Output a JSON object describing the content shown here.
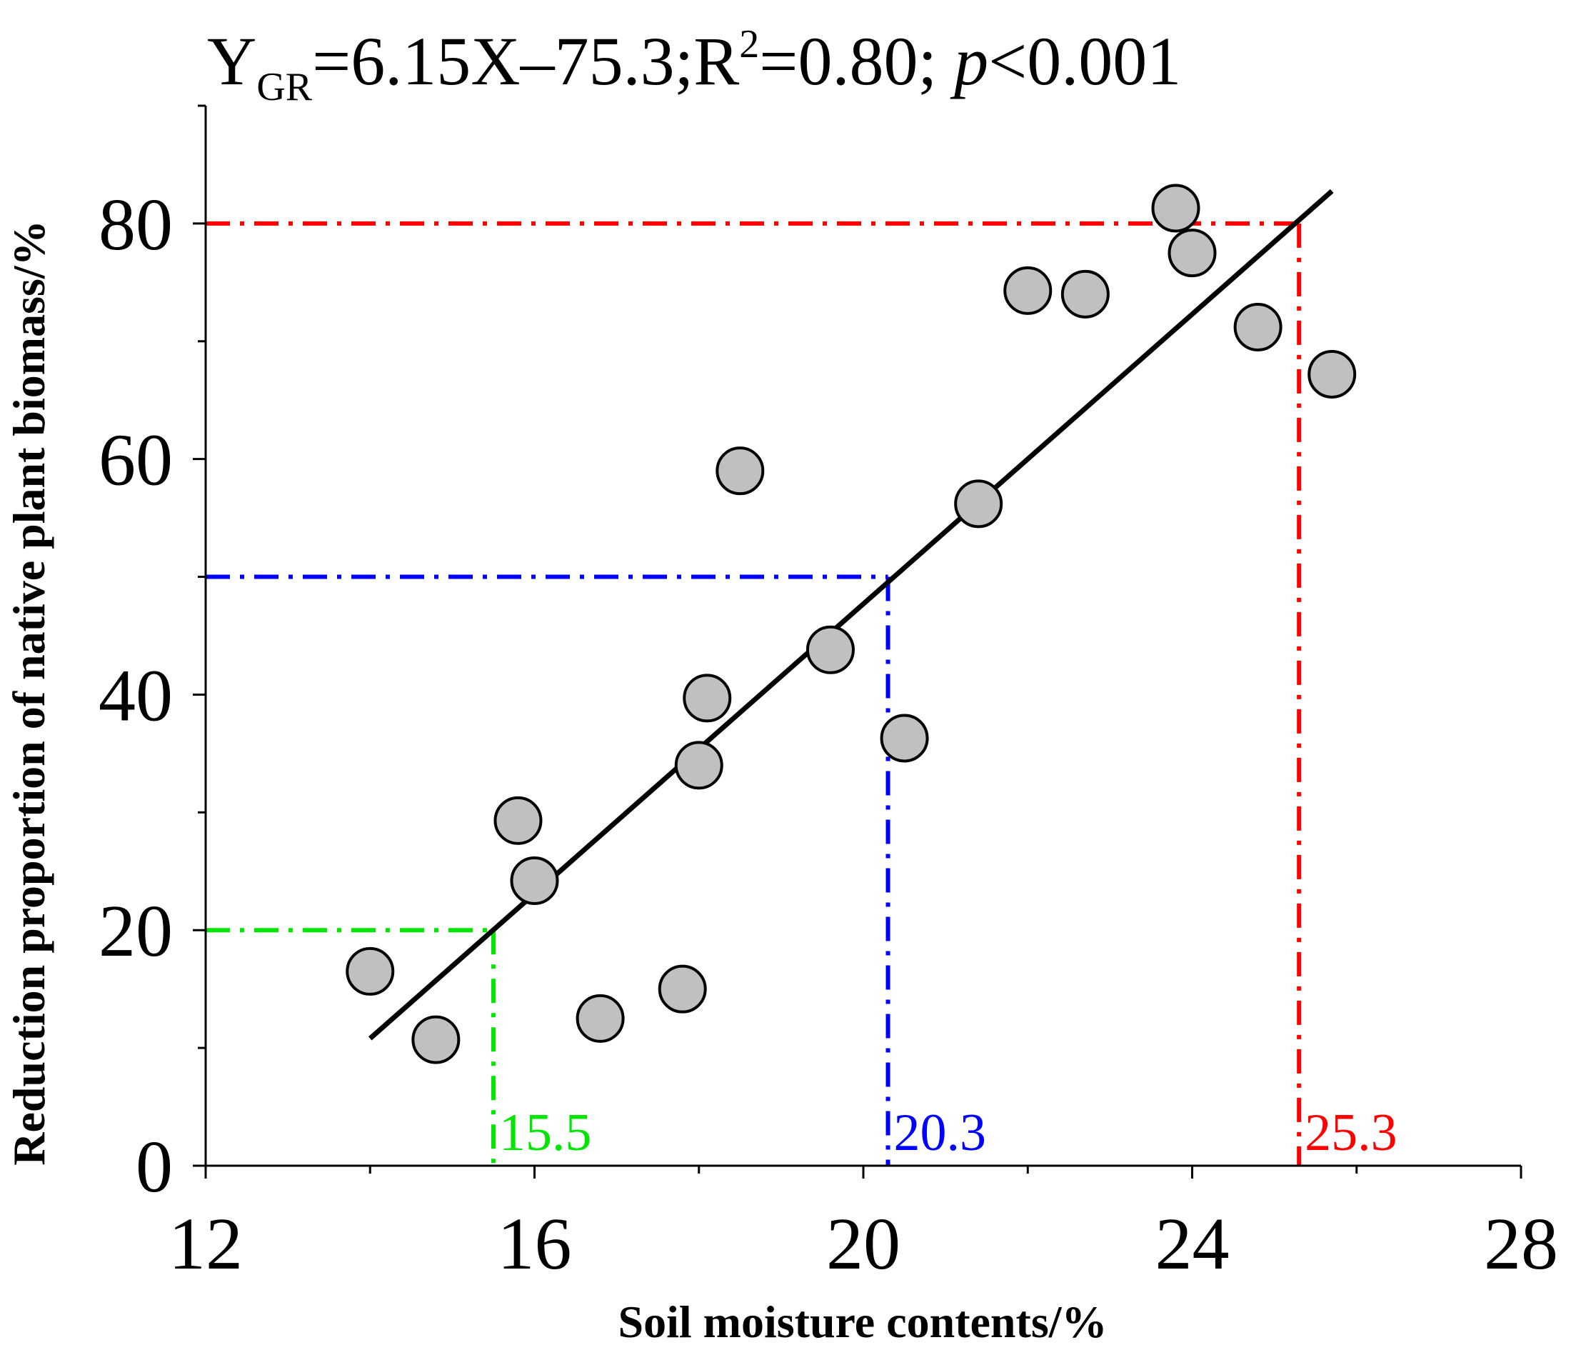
{
  "chart_data": {
    "type": "scatter",
    "equation": {
      "y": "Y",
      "y_sub": "GR",
      "fit": "=6.15X–75.3;R",
      "r_sup": "2",
      "r_val": "=0.80; ",
      "p_sym": "p",
      "p_val": "<0.001"
    },
    "xlabel": "Soil moisture contents/%",
    "ylabel": "Reduction proportion of native plant biomass/%",
    "xlim": [
      12,
      28
    ],
    "ylim": [
      0,
      90
    ],
    "xticks": [
      12,
      16,
      20,
      24,
      28
    ],
    "yticks": [
      0,
      20,
      40,
      60,
      80
    ],
    "x_minor_step": 2,
    "y_minor_step": 10,
    "points": [
      {
        "x": 14.0,
        "y": 16.5
      },
      {
        "x": 14.8,
        "y": 10.7
      },
      {
        "x": 15.8,
        "y": 29.3
      },
      {
        "x": 16.0,
        "y": 24.2
      },
      {
        "x": 16.8,
        "y": 12.5
      },
      {
        "x": 17.8,
        "y": 15.0
      },
      {
        "x": 18.0,
        "y": 34.0
      },
      {
        "x": 18.1,
        "y": 39.7
      },
      {
        "x": 18.5,
        "y": 59.0
      },
      {
        "x": 19.6,
        "y": 43.8
      },
      {
        "x": 20.5,
        "y": 36.3
      },
      {
        "x": 21.4,
        "y": 56.2
      },
      {
        "x": 22.0,
        "y": 74.3
      },
      {
        "x": 22.7,
        "y": 74.0
      },
      {
        "x": 23.8,
        "y": 81.3
      },
      {
        "x": 24.0,
        "y": 77.5
      },
      {
        "x": 24.8,
        "y": 71.2
      },
      {
        "x": 25.7,
        "y": 67.2
      }
    ],
    "fit_line": {
      "slope": 6.15,
      "intercept": -75.3,
      "x_range": [
        14.0,
        25.7
      ],
      "color": "#000000"
    },
    "reference_lines": [
      {
        "x": 15.5,
        "y": 20,
        "label": "15.5",
        "color": "#00e600"
      },
      {
        "x": 20.3,
        "y": 50,
        "label": "20.3",
        "color": "#0000ff"
      },
      {
        "x": 25.3,
        "y": 80,
        "label": "25.3",
        "color": "#ff0000"
      }
    ],
    "marker_fill": "#c0c0c0",
    "marker_stroke": "#000000",
    "grid": false,
    "legend": "none"
  }
}
